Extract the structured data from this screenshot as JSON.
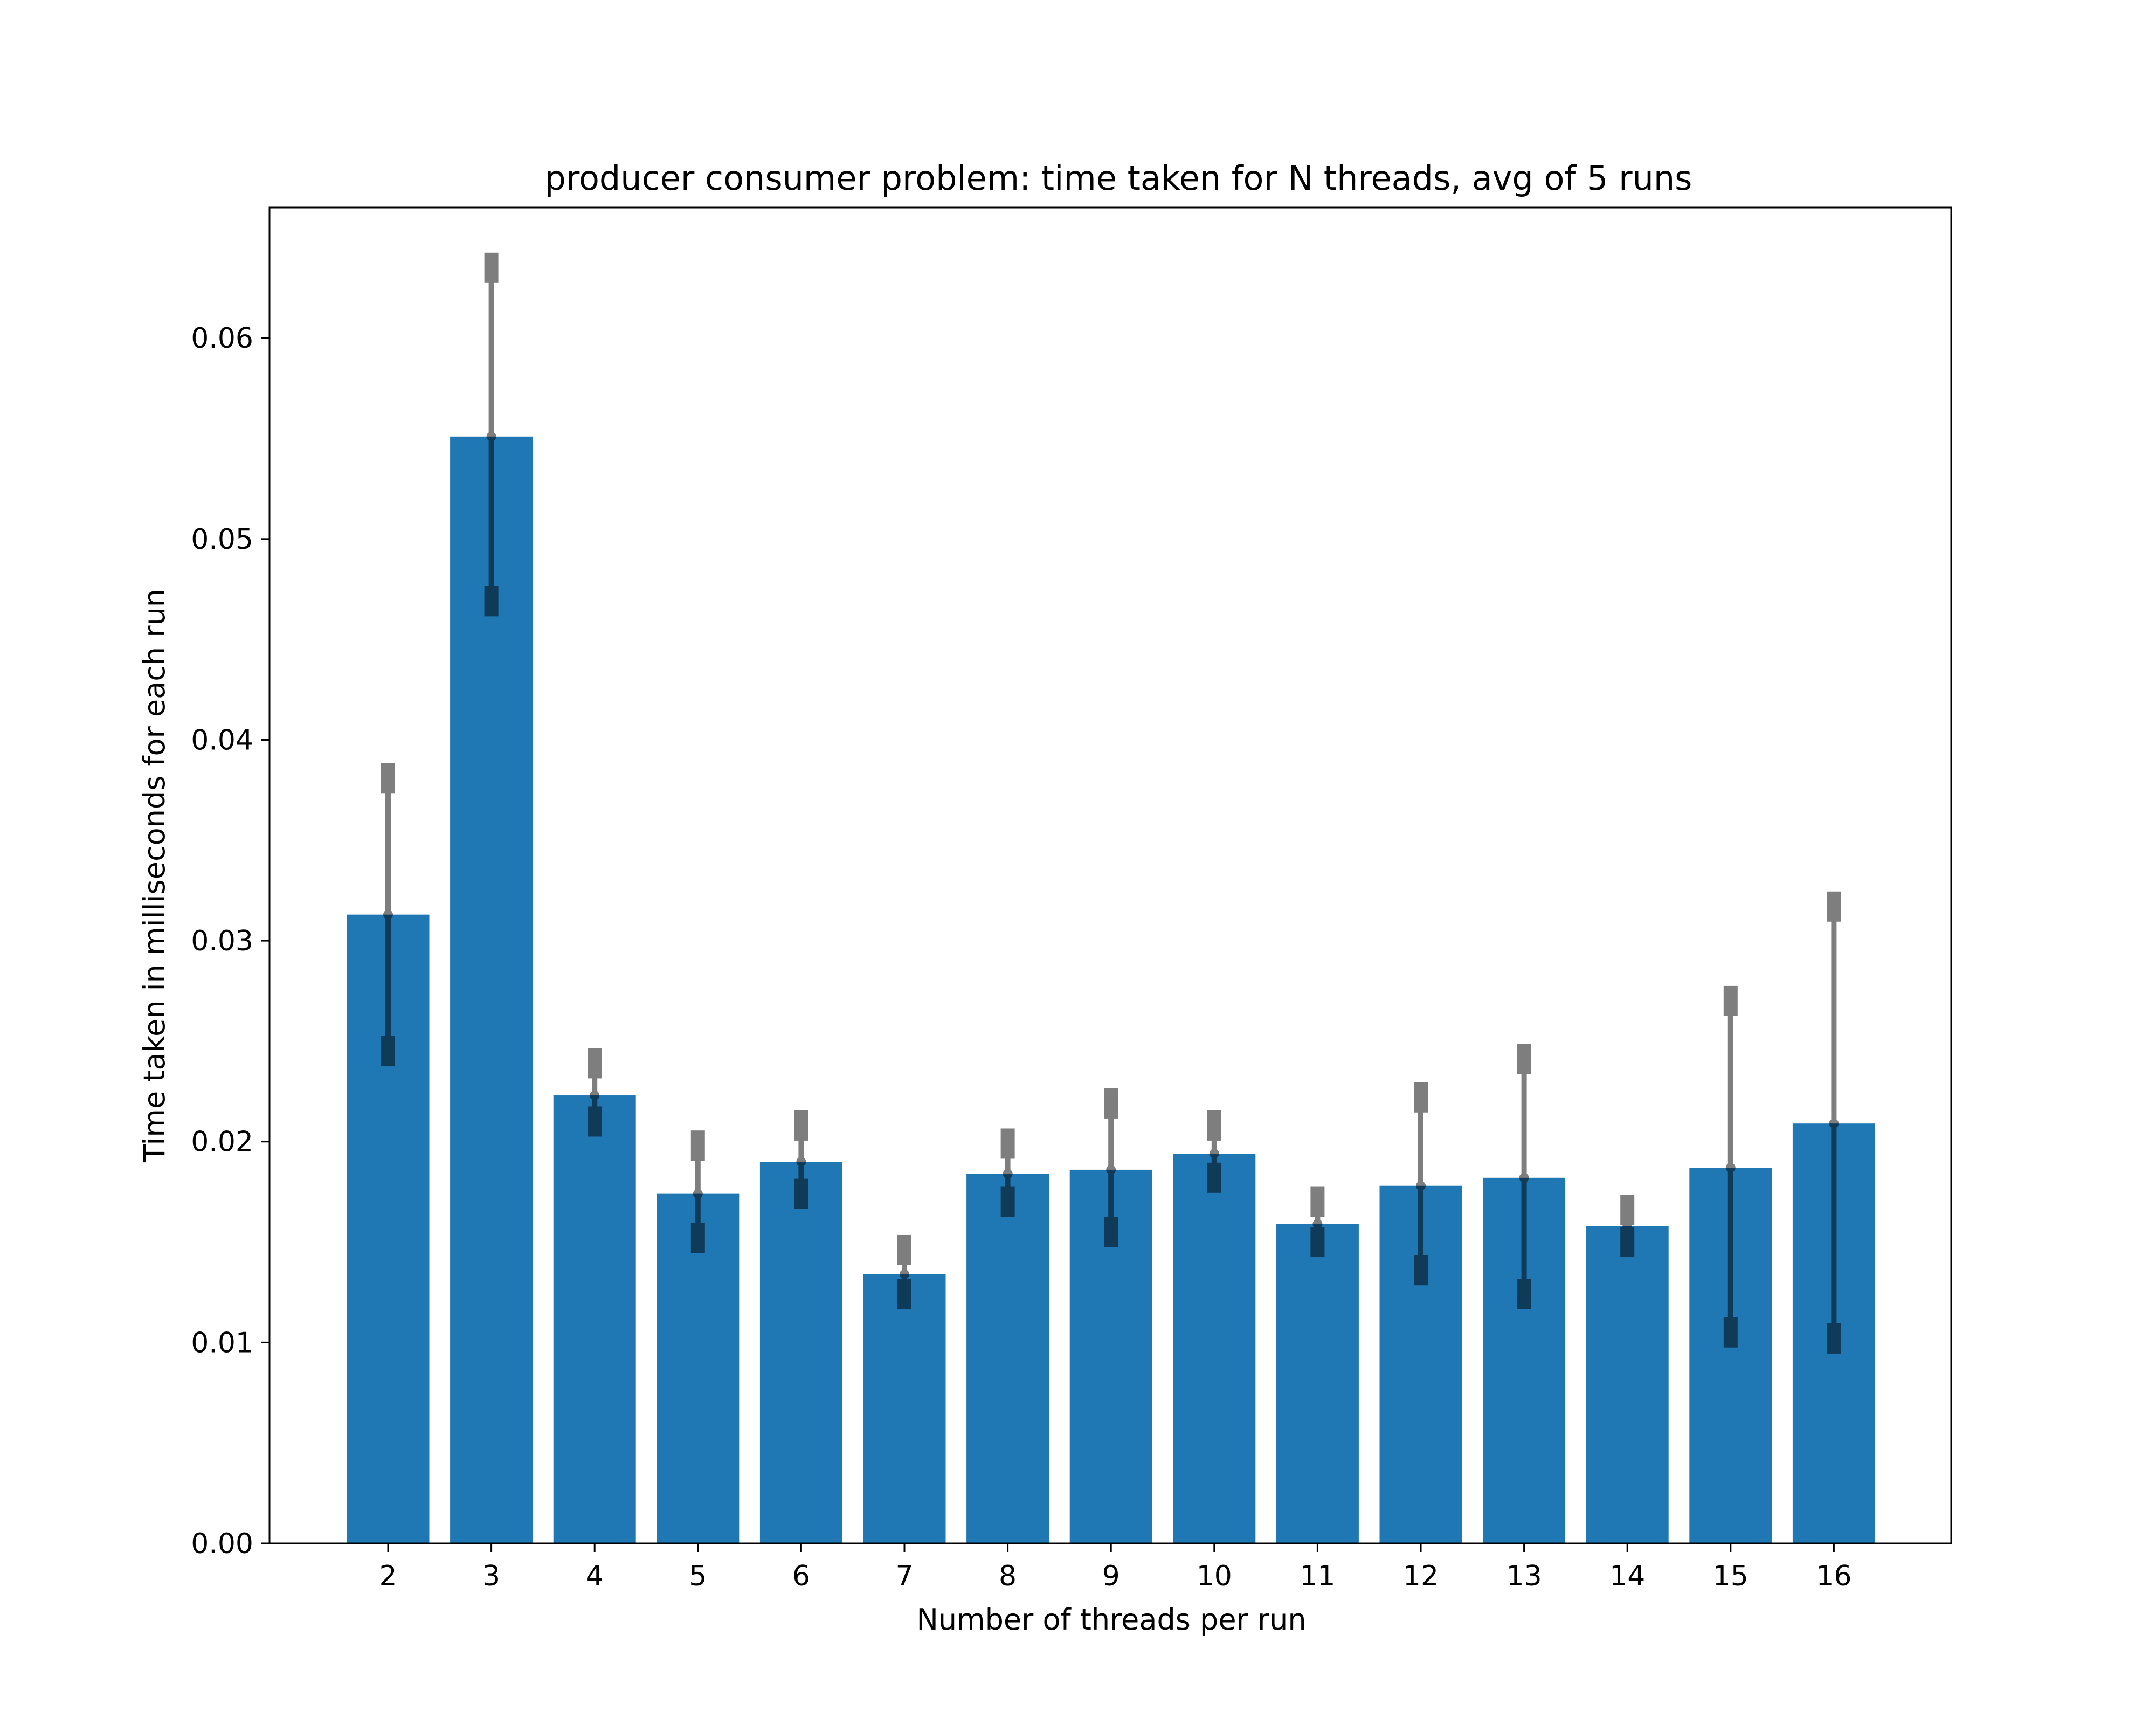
{
  "chart_data": {
    "type": "bar",
    "title": "producer consumer problem: time taken for N threads, avg of 5 runs",
    "xlabel": "Number of threads per run",
    "ylabel": "Time taken in milliseconds for each run",
    "categories": [
      "2",
      "3",
      "4",
      "5",
      "6",
      "7",
      "8",
      "9",
      "10",
      "11",
      "12",
      "13",
      "14",
      "15",
      "16"
    ],
    "values": [
      0.0313,
      0.0551,
      0.0223,
      0.0174,
      0.019,
      0.0134,
      0.0184,
      0.0186,
      0.0194,
      0.0159,
      0.0178,
      0.0182,
      0.0158,
      0.0187,
      0.0209
    ],
    "error_bars": {
      "low": [
        0.0245,
        0.0469,
        0.021,
        0.0152,
        0.0174,
        0.0124,
        0.017,
        0.0155,
        0.0182,
        0.015,
        0.0136,
        0.0124,
        0.015,
        0.0105,
        0.0102
      ],
      "high": [
        0.0381,
        0.0635,
        0.0239,
        0.0198,
        0.0208,
        0.0146,
        0.0199,
        0.0219,
        0.0208,
        0.017,
        0.0222,
        0.0241,
        0.0166,
        0.027,
        0.0317
      ]
    },
    "yticks": [
      "0.00",
      "0.01",
      "0.02",
      "0.03",
      "0.04",
      "0.05",
      "0.06"
    ],
    "ylim": [
      0,
      0.0665
    ],
    "grid": false,
    "colors": {
      "bar": "#1f77b4",
      "error_bar": "#000000"
    }
  }
}
